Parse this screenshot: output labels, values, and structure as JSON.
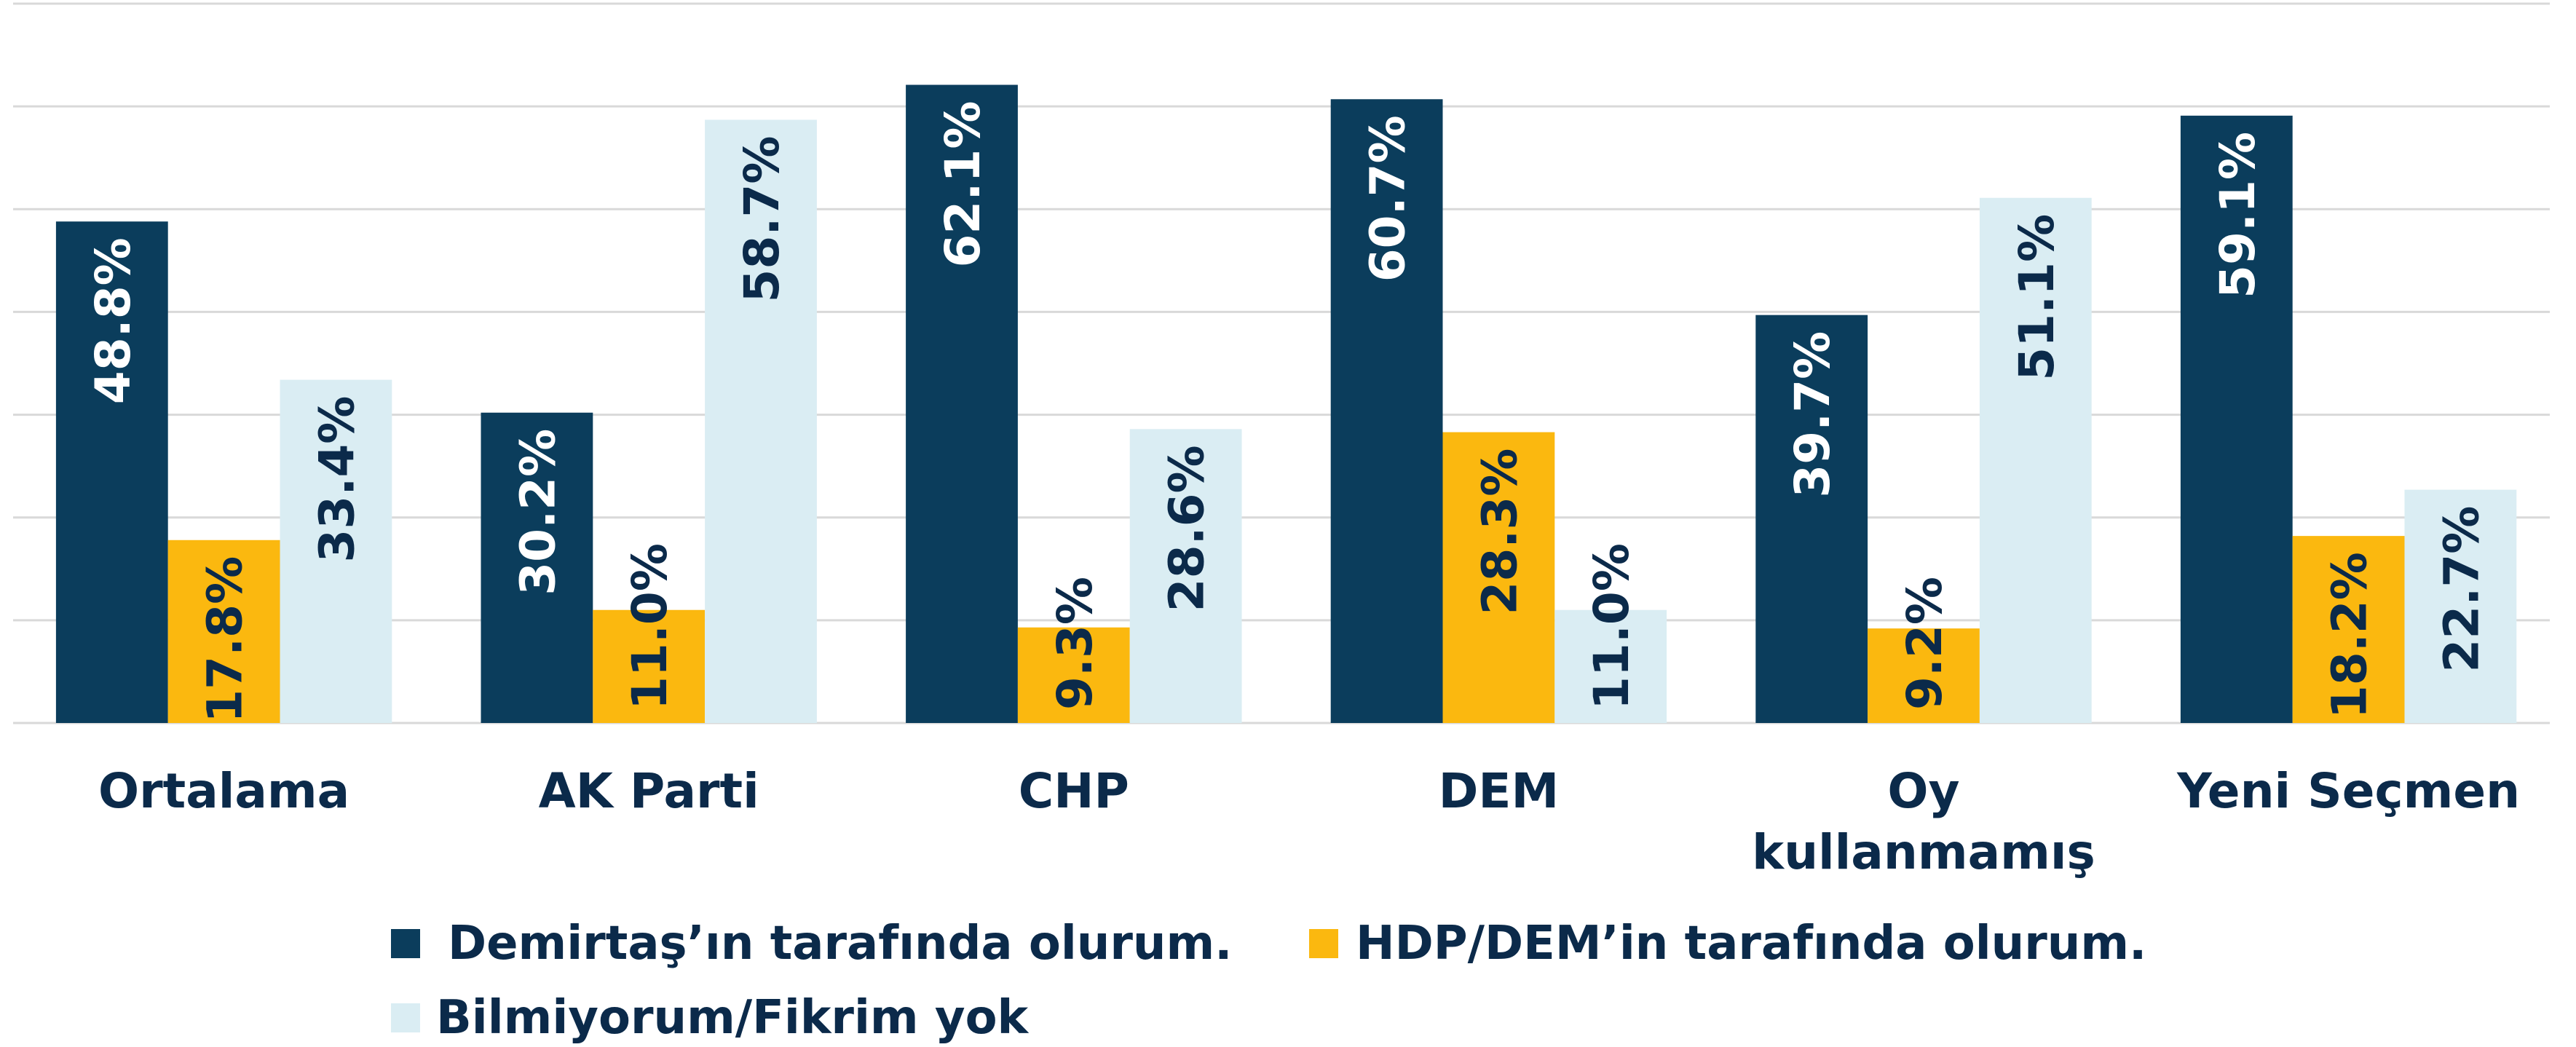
{
  "chart_data": {
    "type": "bar",
    "categories": [
      "Ortalama",
      "AK Parti",
      "CHP",
      "DEM",
      "Oy kullanmamış",
      "Yeni Seçmen"
    ],
    "series": [
      {
        "name": "Demirtaş’ın tarafında olurum.",
        "color": "#0b3d5c",
        "label_color": "#ffffff",
        "values": [
          48.8,
          30.2,
          62.1,
          60.7,
          39.7,
          59.1
        ],
        "value_labels": [
          "48.8%",
          "30.2%",
          "62.1%",
          "60.7%",
          "39.7%",
          "59.1%"
        ]
      },
      {
        "name": "HDP/DEM’in tarafında olurum.",
        "color": "#fbb80f",
        "label_color": "#0b2a4a",
        "values": [
          17.8,
          11.0,
          9.3,
          28.3,
          9.2,
          18.2
        ],
        "value_labels": [
          "17.8%",
          "11.0%",
          "9.3%",
          "28.3%",
          "9.2%",
          "18.2%"
        ]
      },
      {
        "name": "Bilmiyorum/Fikrim yok",
        "color": "#daedf3",
        "label_color": "#0b2a4a",
        "values": [
          33.4,
          58.7,
          28.6,
          11.0,
          51.1,
          22.7
        ],
        "value_labels": [
          "33.4%",
          "58.7%",
          "28.6%",
          "11.0%",
          "51.1%",
          "22.7%"
        ]
      }
    ],
    "ylim": [
      0,
      70
    ],
    "yticks": [
      0,
      10,
      20,
      30,
      40,
      50,
      60,
      70
    ],
    "grid": true
  }
}
